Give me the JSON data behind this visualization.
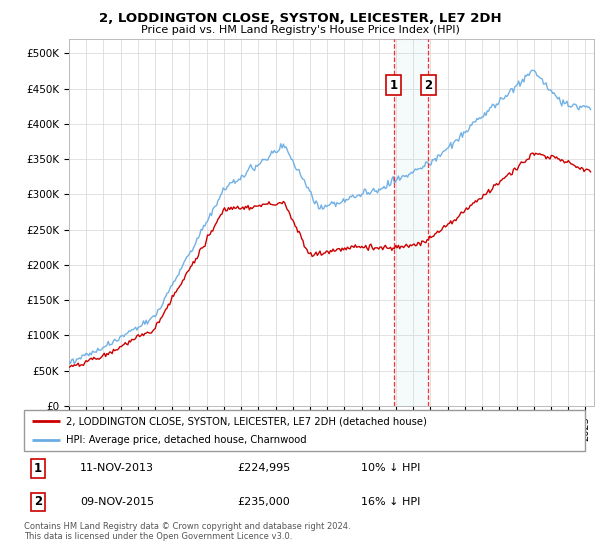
{
  "title": "2, LODDINGTON CLOSE, SYSTON, LEICESTER, LE7 2DH",
  "subtitle": "Price paid vs. HM Land Registry's House Price Index (HPI)",
  "ylabel_ticks": [
    "£0",
    "£50K",
    "£100K",
    "£150K",
    "£200K",
    "£250K",
    "£300K",
    "£350K",
    "£400K",
    "£450K",
    "£500K"
  ],
  "ytick_vals": [
    0,
    50000,
    100000,
    150000,
    200000,
    250000,
    300000,
    350000,
    400000,
    450000,
    500000
  ],
  "ylim": [
    0,
    520000
  ],
  "xlim_start": 1995.0,
  "xlim_end": 2025.5,
  "hpi_color": "#6aade4",
  "price_color": "#cc0000",
  "marker1_date": 2013.87,
  "marker2_date": 2015.87,
  "legend_line1": "2, LODDINGTON CLOSE, SYSTON, LEICESTER, LE7 2DH (detached house)",
  "legend_line2": "HPI: Average price, detached house, Charnwood",
  "footnote": "Contains HM Land Registry data © Crown copyright and database right 2024.\nThis data is licensed under the Open Government Licence v3.0.",
  "background_color": "#ffffff",
  "grid_color": "#dddddd",
  "chart_bg": "#ffffff"
}
